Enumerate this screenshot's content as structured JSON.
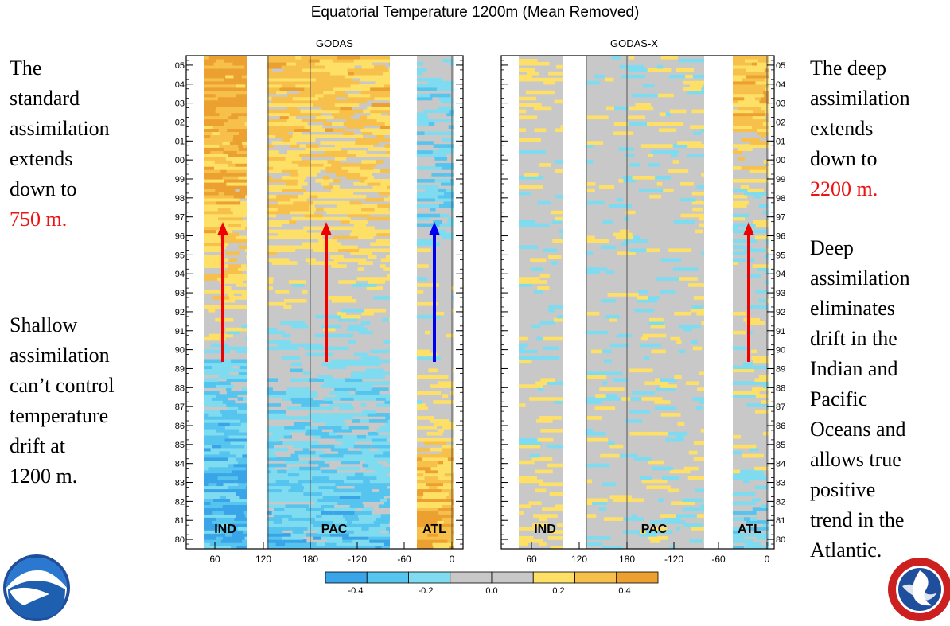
{
  "title": "Equatorial Temperature 1200m (Mean Removed)",
  "left_text_top": {
    "lines": [
      "The",
      "standard",
      "assimilation",
      "extends",
      "down to"
    ],
    "highlight": "750 m."
  },
  "left_text_bottom": {
    "lines": [
      "Shallow",
      "assimilation",
      "can’t control",
      "temperature",
      "drift at",
      "1200 m."
    ]
  },
  "right_text_top": {
    "lines": [
      "The deep",
      "assimilation",
      "extends",
      "down to"
    ],
    "highlight": "2200 m."
  },
  "right_text_bottom": {
    "lines": [
      "Deep",
      "assimilation",
      "eliminates",
      "drift in the",
      "Indian and",
      "Pacific",
      "Oceans and",
      "allows true",
      "positive",
      "trend in the",
      "Atlantic."
    ]
  },
  "colors": {
    "warm_light": "#ffe066",
    "warm_mid": "#f7c04a",
    "warm_dark": "#eba030",
    "cool_light": "#7fdcf0",
    "cool_mid": "#55c4ee",
    "cool_dark": "#3aa4e8",
    "neutral": "#c8c8c8",
    "arrow_red": "#ee0000",
    "arrow_blue": "#0000ee"
  },
  "chart_data": [
    {
      "type": "heatmap",
      "panel": "GODAS",
      "xlabel": "",
      "ylabel": "",
      "x_tick_labels": [
        "60",
        "120",
        "180",
        "-120",
        "-60",
        "0"
      ],
      "y_tick_labels": [
        "80",
        "81",
        "82",
        "83",
        "84",
        "85",
        "86",
        "87",
        "88",
        "89",
        "90",
        "91",
        "92",
        "93",
        "94",
        "95",
        "96",
        "97",
        "98",
        "99",
        "00",
        "01",
        "02",
        "03",
        "04",
        "05"
      ],
      "region_labels": [
        "IND",
        "PAC",
        "ATL"
      ],
      "basins": [
        {
          "name": "IND",
          "trend": [
            -0.3,
            -0.3,
            -0.28,
            -0.28,
            -0.25,
            -0.22,
            -0.2,
            -0.18,
            -0.15,
            -0.12,
            -0.05,
            0.0,
            0.05,
            0.1,
            0.12,
            0.15,
            0.18,
            0.2,
            0.22,
            0.25,
            0.25,
            0.28,
            0.3,
            0.32,
            0.32,
            0.35
          ]
        },
        {
          "name": "PAC",
          "trend": [
            -0.2,
            -0.2,
            -0.18,
            -0.18,
            -0.15,
            -0.15,
            -0.12,
            -0.12,
            -0.1,
            -0.08,
            -0.05,
            -0.02,
            0.0,
            0.02,
            0.05,
            0.08,
            0.1,
            0.12,
            0.12,
            0.15,
            0.15,
            0.15,
            0.18,
            0.18,
            0.2,
            0.2
          ]
        },
        {
          "name": "ATL",
          "trend": [
            0.3,
            0.3,
            0.28,
            0.25,
            0.22,
            0.15,
            0.05,
            0.0,
            0.0,
            0.0,
            0.0,
            0.0,
            0.0,
            0.0,
            0.0,
            0.0,
            -0.05,
            -0.12,
            -0.15,
            -0.15,
            -0.15,
            -0.15,
            -0.12,
            -0.1,
            -0.1,
            -0.08
          ]
        }
      ],
      "trend_arrows": [
        {
          "basin": "IND",
          "color": "red"
        },
        {
          "basin": "PAC",
          "color": "red"
        },
        {
          "basin": "ATL",
          "color": "blue"
        }
      ]
    },
    {
      "type": "heatmap",
      "panel": "GODAS-X",
      "xlabel": "",
      "ylabel": "",
      "x_tick_labels": [
        "60",
        "120",
        "180",
        "-120",
        "-60",
        "0"
      ],
      "y_tick_labels": [
        "80",
        "81",
        "82",
        "83",
        "84",
        "85",
        "86",
        "87",
        "88",
        "89",
        "90",
        "91",
        "92",
        "93",
        "94",
        "95",
        "96",
        "97",
        "98",
        "99",
        "00",
        "01",
        "02",
        "03",
        "04",
        "05"
      ],
      "region_labels": [
        "IND",
        "PAC",
        "ATL"
      ],
      "basins": [
        {
          "name": "IND",
          "trend": [
            0.08,
            0.05,
            0.05,
            0.05,
            0.02,
            0.0,
            0.0,
            0.0,
            0.0,
            0.0,
            0.0,
            0.0,
            0.0,
            0.0,
            0.0,
            -0.02,
            -0.02,
            -0.02,
            -0.02,
            0.0,
            0.0,
            0.02,
            0.02,
            0.05,
            0.05,
            0.05
          ]
        },
        {
          "name": "PAC",
          "trend": [
            0.0,
            0.0,
            0.0,
            0.0,
            0.0,
            0.0,
            0.0,
            0.0,
            0.0,
            0.0,
            0.0,
            0.0,
            0.0,
            0.0,
            0.0,
            0.0,
            0.0,
            0.0,
            0.0,
            0.0,
            0.0,
            0.0,
            0.0,
            0.0,
            0.0,
            0.0
          ]
        },
        {
          "name": "ATL",
          "trend": [
            -0.15,
            -0.1,
            -0.08,
            -0.05,
            0.0,
            0.0,
            0.0,
            0.0,
            0.0,
            0.0,
            0.0,
            0.0,
            0.0,
            0.0,
            0.0,
            0.0,
            0.0,
            0.0,
            0.0,
            0.05,
            0.1,
            0.15,
            0.2,
            0.22,
            0.25,
            0.25
          ]
        }
      ],
      "trend_arrows": [
        {
          "basin": "ATL",
          "color": "red"
        }
      ]
    }
  ],
  "colorbar": {
    "tick_labels": [
      "-0.4",
      "-0.2",
      "0.0",
      "0.2",
      "0.4"
    ],
    "colors": [
      "#3aa4e8",
      "#55c4ee",
      "#7fdcf0",
      "#c8c8c8",
      "#c8c8c8",
      "#ffe066",
      "#f7c04a",
      "#eba030"
    ]
  }
}
